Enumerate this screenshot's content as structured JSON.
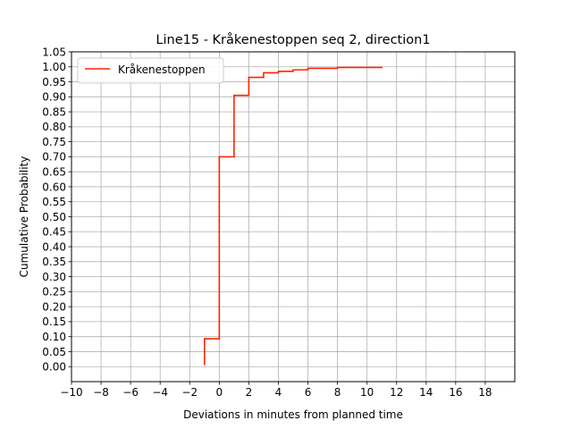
{
  "chart_data": {
    "type": "line",
    "title": "Line15 - Kråkenestoppen seq 2, direction1",
    "xlabel": "Deviations in minutes from planned time",
    "ylabel": "Cumulative Probability",
    "xlim": [
      -10,
      20
    ],
    "ylim": [
      -0.05,
      1.05
    ],
    "xticks": [
      -10,
      -8,
      -6,
      -4,
      -2,
      0,
      2,
      4,
      6,
      8,
      10,
      12,
      14,
      16,
      18
    ],
    "yticks": [
      0.0,
      0.05,
      0.1,
      0.15,
      0.2,
      0.25,
      0.3,
      0.35,
      0.4,
      0.45,
      0.5,
      0.55,
      0.6,
      0.65,
      0.7,
      0.75,
      0.8,
      0.85,
      0.9,
      0.95,
      1.0,
      1.05
    ],
    "grid": true,
    "legend_position": "top-left",
    "step": "post",
    "series": [
      {
        "name": "Kråkenestoppen",
        "color": "#ff2200",
        "x": [
          -1,
          -1,
          0,
          1,
          2,
          3,
          4,
          5,
          6,
          7,
          8,
          9,
          10,
          11
        ],
        "y": [
          0.005,
          0.093,
          0.7,
          0.905,
          0.965,
          0.98,
          0.985,
          0.99,
          0.995,
          0.995,
          0.998,
          0.998,
          0.998,
          1.0
        ]
      }
    ]
  }
}
